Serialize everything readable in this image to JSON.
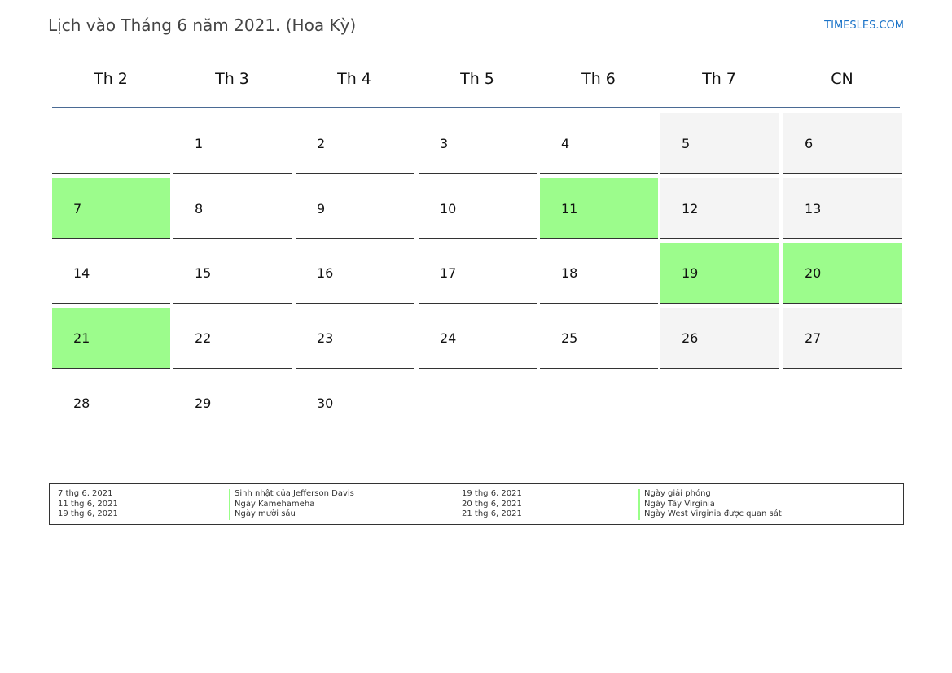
{
  "title": "Lịch vào Tháng 6 năm 2021. (Hoa Kỳ)",
  "brand": "TIMESLES.COM",
  "colors": {
    "holiday": "#9cfc8c",
    "weekend": "#f4f4f4",
    "header_line": "#4a6a94"
  },
  "weekdays": [
    "Th 2",
    "Th 3",
    "Th 4",
    "Th 5",
    "Th 6",
    "Th 7",
    "CN"
  ],
  "weeks": [
    [
      "",
      "1",
      "2",
      "3",
      "4",
      "5",
      "6"
    ],
    [
      "7",
      "8",
      "9",
      "10",
      "11",
      "12",
      "13"
    ],
    [
      "14",
      "15",
      "16",
      "17",
      "18",
      "19",
      "20"
    ],
    [
      "21",
      "22",
      "23",
      "24",
      "25",
      "26",
      "27"
    ],
    [
      "28",
      "29",
      "30",
      "",
      "",
      "",
      ""
    ]
  ],
  "holidays": [
    "7",
    "11",
    "19",
    "20",
    "21"
  ],
  "legend": {
    "left": [
      {
        "date": "7 thg 6, 2021",
        "name": "Sinh nhật của Jefferson Davis"
      },
      {
        "date": "11 thg 6, 2021",
        "name": "Ngày Kamehameha"
      },
      {
        "date": "19 thg 6, 2021",
        "name": "Ngày mười sáu"
      }
    ],
    "right": [
      {
        "date": "19 thg 6, 2021",
        "name": "Ngày giải phóng"
      },
      {
        "date": "20 thg 6, 2021",
        "name": "Ngày Tây Virginia"
      },
      {
        "date": "21 thg 6, 2021",
        "name": "Ngày West Virginia được quan sát"
      }
    ]
  }
}
